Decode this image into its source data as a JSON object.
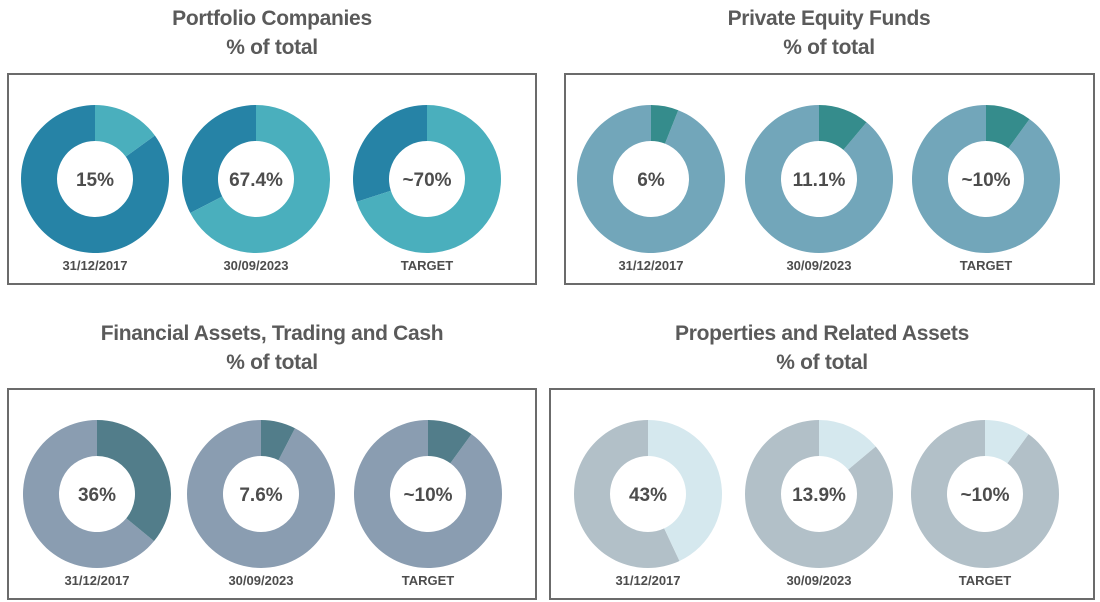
{
  "chart_data": [
    {
      "type": "pie",
      "title": "Portfolio Companies",
      "subtitle": "% of total",
      "colors": {
        "highlight": "#4aafbd",
        "rest": "#2683a6"
      },
      "slices": [
        {
          "category": "31/12/2017",
          "value_label": "15%",
          "value": 15,
          "highlight": "light"
        },
        {
          "category": "30/09/2023",
          "value_label": "67.4%",
          "value": 67.4,
          "highlight": "light"
        },
        {
          "category": "TARGET",
          "value_label": "~70%",
          "value": 70,
          "highlight": "light"
        }
      ]
    },
    {
      "type": "pie",
      "title": "Private Equity Funds",
      "subtitle": "% of total",
      "colors": {
        "highlight": "#358c8c",
        "rest": "#72a6ba"
      },
      "slices": [
        {
          "category": "31/12/2017",
          "value_label": "6%",
          "value": 6
        },
        {
          "category": "30/09/2023",
          "value_label": "11.1%",
          "value": 11.1
        },
        {
          "category": "TARGET",
          "value_label": "~10%",
          "value": 10
        }
      ]
    },
    {
      "type": "pie",
      "title": "Financial Assets, Trading and Cash",
      "subtitle": "% of total",
      "colors": {
        "highlight": "#527d8a",
        "rest": "#8a9db1"
      },
      "slices": [
        {
          "category": "31/12/2017",
          "value_label": "36%",
          "value": 36
        },
        {
          "category": "30/09/2023",
          "value_label": "7.6%",
          "value": 7.6
        },
        {
          "category": "TARGET",
          "value_label": "~10%",
          "value": 10
        }
      ]
    },
    {
      "type": "pie",
      "title": "Properties and Related Assets",
      "subtitle": "% of total",
      "colors": {
        "highlight": "#d5e8ee",
        "rest": "#b2c0c8"
      },
      "slices": [
        {
          "category": "31/12/2017",
          "value_label": "43%",
          "value": 43
        },
        {
          "category": "30/09/2023",
          "value_label": "13.9%",
          "value": 13.9
        },
        {
          "category": "TARGET",
          "value_label": "~10%",
          "value": 10
        }
      ]
    }
  ]
}
